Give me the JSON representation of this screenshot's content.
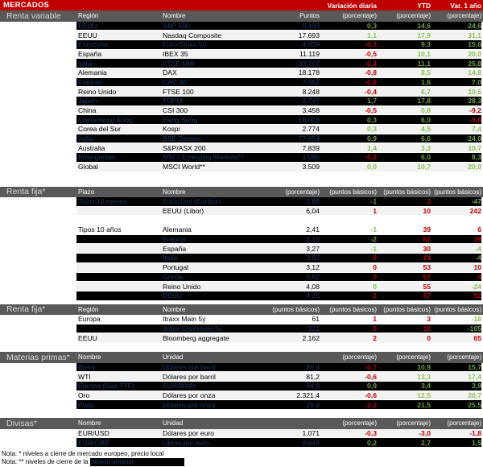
{
  "colors": {
    "bar_red": "#C00000",
    "section_gray": "#595959",
    "highlight_row_bg": "#000000",
    "highlight_row_text": "#1F3864",
    "positive_green": "#8CC051",
    "negative_red": "#C00000",
    "light_row_bg": "#F2F2F2"
  },
  "topbar": {
    "title": "MERCADOS",
    "col_daily": "Variación diaria",
    "col_ytd": "YTD",
    "col_1y": "Var. 1 año"
  },
  "sections": [
    {
      "label": "Renta variable",
      "rule": "direct",
      "headers": [
        "Región",
        "Nombre",
        "Puntos",
        "(porcentaje)",
        "(porcentaje)",
        "(porcentaje)"
      ],
      "rows": [
        {
          "c1": "EEUU",
          "c2": "S&P 500",
          "v": "5.433",
          "d": "0,3",
          "ytd": "14,6",
          "y1": "24,6",
          "hl": true
        },
        {
          "c1": "EEUU",
          "c2": "Nasdaq Composite",
          "v": "17.693",
          "d": "1,1",
          "ytd": "17,9",
          "y1": "31,1"
        },
        {
          "c1": "Eurozona",
          "c2": "Euro Stoxx 50",
          "v": "4.939",
          "d": "-0,3",
          "ytd": "9,3",
          "y1": "15,6",
          "hl": true
        },
        {
          "c1": "España",
          "c2": "IBEX 35",
          "v": "11.119",
          "d": "-0,5",
          "ytd": "10,1",
          "y1": "20,0"
        },
        {
          "c1": "Italia",
          "c2": "FTSE MIB",
          "v": "33.707",
          "d": "-0,4",
          "ytd": "11,1",
          "y1": "25,8",
          "hl": true
        },
        {
          "c1": "Alemania",
          "c2": "DAX",
          "v": "18.178",
          "d": "-0,8",
          "ytd": "8,5",
          "y1": "14,8"
        },
        {
          "c1": "Francia",
          "c2": "CAC 40",
          "v": "7.662",
          "d": "-0,6",
          "ytd": "1,6",
          "y1": "7,0",
          "hl": true
        },
        {
          "c1": "Reino Unido",
          "c2": "FTSE 100",
          "v": "8.248",
          "d": "-0,4",
          "ytd": "6,7",
          "y1": "10,5"
        },
        {
          "c1": "Japón",
          "c2": "TOPIX",
          "v": "2.747",
          "d": "1,7",
          "ytd": "17,8",
          "y1": "28,3",
          "hl": true
        },
        {
          "c1": "China",
          "c2": "CSI 300",
          "v": "3.458",
          "d": "-0,5",
          "ytd": "0,8",
          "y1": "-9,2"
        },
        {
          "c1": "China/Hong Kong",
          "c2": "Hang Seng",
          "v": "18.028",
          "d": "0,3",
          "ytd": "6,0",
          "y1": "-9,8",
          "hl": true
        },
        {
          "c1": "Corea del Sur",
          "c2": "Kospi",
          "v": "2.774",
          "d": "0,3",
          "ytd": "4,5",
          "y1": "7,4"
        },
        {
          "c1": "India",
          "c2": "BSE Sensex",
          "v": "77.054",
          "d": "0,9",
          "ytd": "6,6",
          "y1": "24,0",
          "hl": true
        },
        {
          "c1": "Australia",
          "c2": "S&P/ASX 200",
          "v": "7.839",
          "d": "1,4",
          "ytd": "3,3",
          "y1": "10,7"
        },
        {
          "c1": "Emergentes",
          "c2": "MSCI Emerging Markets**",
          "v": "1.085",
          "d": "-0,2",
          "ytd": "6,0",
          "y1": "8,3",
          "hl": true
        },
        {
          "c1": "Global",
          "c2": "MSCI World**",
          "v": "3.509",
          "d": "0,0",
          "ytd": "10,7",
          "y1": "20,9"
        }
      ]
    },
    {
      "label": "Renta fija*",
      "rule": "inverse",
      "headers": [
        "Plazo",
        "Nombre",
        "(porcentaje)",
        "(puntos básicos)",
        "(puntos básicos)",
        "(puntos básicos)"
      ],
      "rows": [
        {
          "c1": "Tipos 12 meses",
          "c2": "Eurozona (Euribor)",
          "v": "3,68",
          "d": "-1",
          "ytd": "3",
          "y1": "-47",
          "hl": true
        },
        {
          "c1": "",
          "c2": "EEUU (Libor)",
          "v": "6,04",
          "d": "1",
          "ytd": "10",
          "y1": "242"
        },
        {
          "spacer": true
        },
        {
          "c1": "Tipos 10 años",
          "c2": "Alemania",
          "v": "2,41",
          "d": "-1",
          "ytd": "39",
          "y1": "6",
          "plain": true
        },
        {
          "c1": "",
          "c2": "Francia",
          "v": "3,16",
          "d": "-2",
          "ytd": "61",
          "y1": "39",
          "hl": true
        },
        {
          "c1": "",
          "c2": "España",
          "v": "3,27",
          "d": "-1",
          "ytd": "30",
          "y1": "-4"
        },
        {
          "c1": "",
          "c2": "Italia",
          "v": "3,92",
          "d": "0",
          "ytd": "24",
          "y1": "-4",
          "hl": true
        },
        {
          "c1": "",
          "c2": "Portugal",
          "v": "3,12",
          "d": "0",
          "ytd": "53",
          "y1": "10"
        },
        {
          "c1": "",
          "c2": "Grecia",
          "v": "3,62",
          "d": "0",
          "ytd": "57",
          "y1": "4",
          "hl": true
        },
        {
          "c1": "",
          "c2": "Reino Unido",
          "v": "4,08",
          "d": "0",
          "ytd": "55",
          "y1": "-24",
          "oc": [
            "g",
            null,
            null
          ]
        },
        {
          "c1": "",
          "c2": "EEUU",
          "v": "4,25",
          "d": "2",
          "ytd": "37",
          "y1": "52",
          "hl": true
        }
      ]
    },
    {
      "label": "Renta fija*",
      "rule": "inverse",
      "headers": [
        "Región",
        "Nombre",
        "(puntos básicos)",
        "(puntos básicos)",
        "(puntos básicos)",
        "(puntos básicos)"
      ],
      "rows": [
        {
          "c1": "Europa",
          "c2": "Itraxx Main 5y",
          "v": "61",
          "d": "1",
          "ytd": "3",
          "y1": "-18",
          "plain": true
        },
        {
          "c1": "",
          "c2": "Itraxx Crossover 5y",
          "v": "321",
          "d": "5",
          "ytd": "10",
          "y1": "-105",
          "hl": true
        },
        {
          "c1": "EEUU",
          "c2": "Bloomberg aggregate",
          "v": "2.162",
          "d": "2",
          "ytd": "0",
          "y1": "65"
        }
      ]
    },
    {
      "label": "Materias primas*",
      "rule": "direct",
      "headers": [
        "Nombre",
        "Unidad",
        "",
        "(porcentaje)",
        "(porcentaje)",
        "(porcentaje)"
      ],
      "rows": [
        {
          "c1": "Brent",
          "c2": "Dólares por barril",
          "v": "85,4",
          "d": "-0,7",
          "ytd": "10,9",
          "y1": "15,7",
          "hl": true
        },
        {
          "c1": "WTI",
          "c2": "Dólares por barril",
          "v": "81,2",
          "d": "-0,6",
          "ytd": "13,3",
          "y1": "17,4"
        },
        {
          "c1": "Europa (Gas TTF)",
          "c2": "EUR/MWh",
          "v": "34,9",
          "d": "0,9",
          "ytd": "3,4",
          "y1": "3,9",
          "hl": true
        },
        {
          "c1": "Oro",
          "c2": "Dólares por onza",
          "v": "2.321,4",
          "d": "-0,6",
          "ytd": "12,5",
          "y1": "20,7"
        },
        {
          "c1": "Plata",
          "c2": "Dólares por onza",
          "v": "29,9",
          "d": "-2,2",
          "ytd": "21,5",
          "y1": "25,5",
          "hl": true
        }
      ]
    },
    {
      "label": "Divisas*",
      "rule": "direct",
      "headers": [
        "Nombre",
        "Unidad",
        "",
        "(porcentaje)",
        "(porcentaje)",
        "(porcentaje)"
      ],
      "rows": [
        {
          "c1": "EUR/USD",
          "c2": "Dólares por euro",
          "v": "1,071",
          "d": "-0,3",
          "ytd": "-3,0",
          "y1": "-1,8"
        },
        {
          "c1": "EUR/GBP",
          "c2": "Libras por euro",
          "v": "0,844",
          "d": "0,2",
          "ytd": "2,7",
          "y1": "1,5",
          "hl": true
        }
      ]
    }
  ],
  "notes": {
    "note1": "Nota: * niveles a cierre de mercado europeo, precio local",
    "note2_prefix": "Nota: ** niveles de cierre de la ",
    "note2_highlight": "sesión anterior"
  }
}
